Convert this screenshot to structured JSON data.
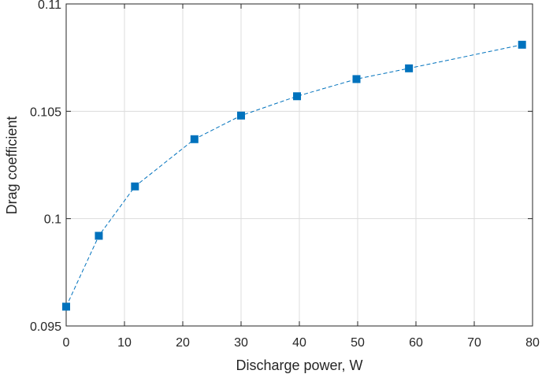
{
  "chart_data": {
    "type": "line",
    "title": "",
    "xlabel": "Discharge power, W",
    "ylabel": "Drag coefficient",
    "xlim": [
      0,
      80
    ],
    "ylim": [
      0.095,
      0.11
    ],
    "xticks": [
      0,
      10,
      20,
      30,
      40,
      50,
      60,
      70,
      80
    ],
    "yticks": [
      0.095,
      0.1,
      0.105,
      0.11
    ],
    "xtick_labels": [
      "0",
      "10",
      "20",
      "30",
      "40",
      "50",
      "60",
      "70",
      "80"
    ],
    "ytick_labels": [
      "0.095",
      "0.1",
      "0.105",
      "0.11"
    ],
    "grid": true,
    "legend": "none",
    "series": [
      {
        "color": "#0072BD",
        "line_style": "dashed",
        "marker": "square",
        "x": [
          0,
          5.6,
          11.8,
          22,
          30,
          39.6,
          49.8,
          58.8,
          78.2
        ],
        "y": [
          0.0959,
          0.0992,
          0.1015,
          0.1037,
          0.1048,
          0.1057,
          0.1065,
          0.107,
          0.1081
        ]
      }
    ]
  }
}
